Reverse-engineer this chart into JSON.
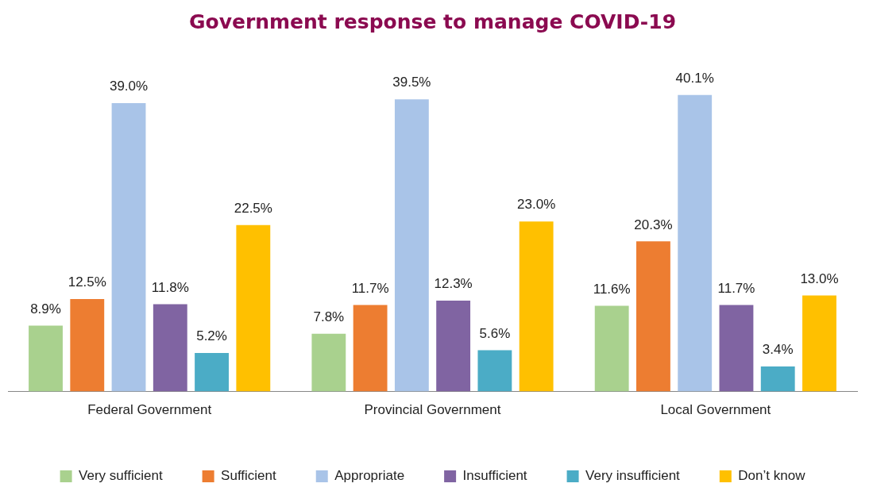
{
  "chart_data": {
    "type": "bar",
    "title": "Government response to manage COVID-19",
    "categories": [
      "Federal Government",
      "Provincial Government",
      "Local Government"
    ],
    "series": [
      {
        "name": "Very sufficient",
        "color": "#a9d18e",
        "values": [
          8.9,
          7.8,
          11.6
        ],
        "value_labels": [
          "8.9%",
          "7.8%",
          "11.6%"
        ]
      },
      {
        "name": "Sufficient",
        "color": "#ed7d31",
        "values": [
          12.5,
          11.7,
          20.3
        ],
        "value_labels": [
          "12.5%",
          "11.7%",
          "20.3%"
        ]
      },
      {
        "name": "Appropriate",
        "color": "#a9c4e8",
        "values": [
          39.0,
          39.5,
          40.1
        ],
        "value_labels": [
          "39.0%",
          "39.5%",
          "40.1%"
        ]
      },
      {
        "name": "Insufficient",
        "color": "#8064a2",
        "values": [
          11.8,
          12.3,
          11.7
        ],
        "value_labels": [
          "11.8%",
          "12.3%",
          "11.7%"
        ]
      },
      {
        "name": "Very insufficient",
        "color": "#4bacc6",
        "values": [
          5.2,
          5.6,
          3.4
        ],
        "value_labels": [
          "5.2%",
          "5.6%",
          "3.4%"
        ]
      },
      {
        "name": "Don’t know",
        "color": "#ffc000",
        "values": [
          22.5,
          23.0,
          13.0
        ],
        "value_labels": [
          "22.5%",
          "23.0%",
          "13.0%"
        ]
      }
    ],
    "legend": "bottom",
    "grid": false,
    "tick_labels": "x"
  }
}
